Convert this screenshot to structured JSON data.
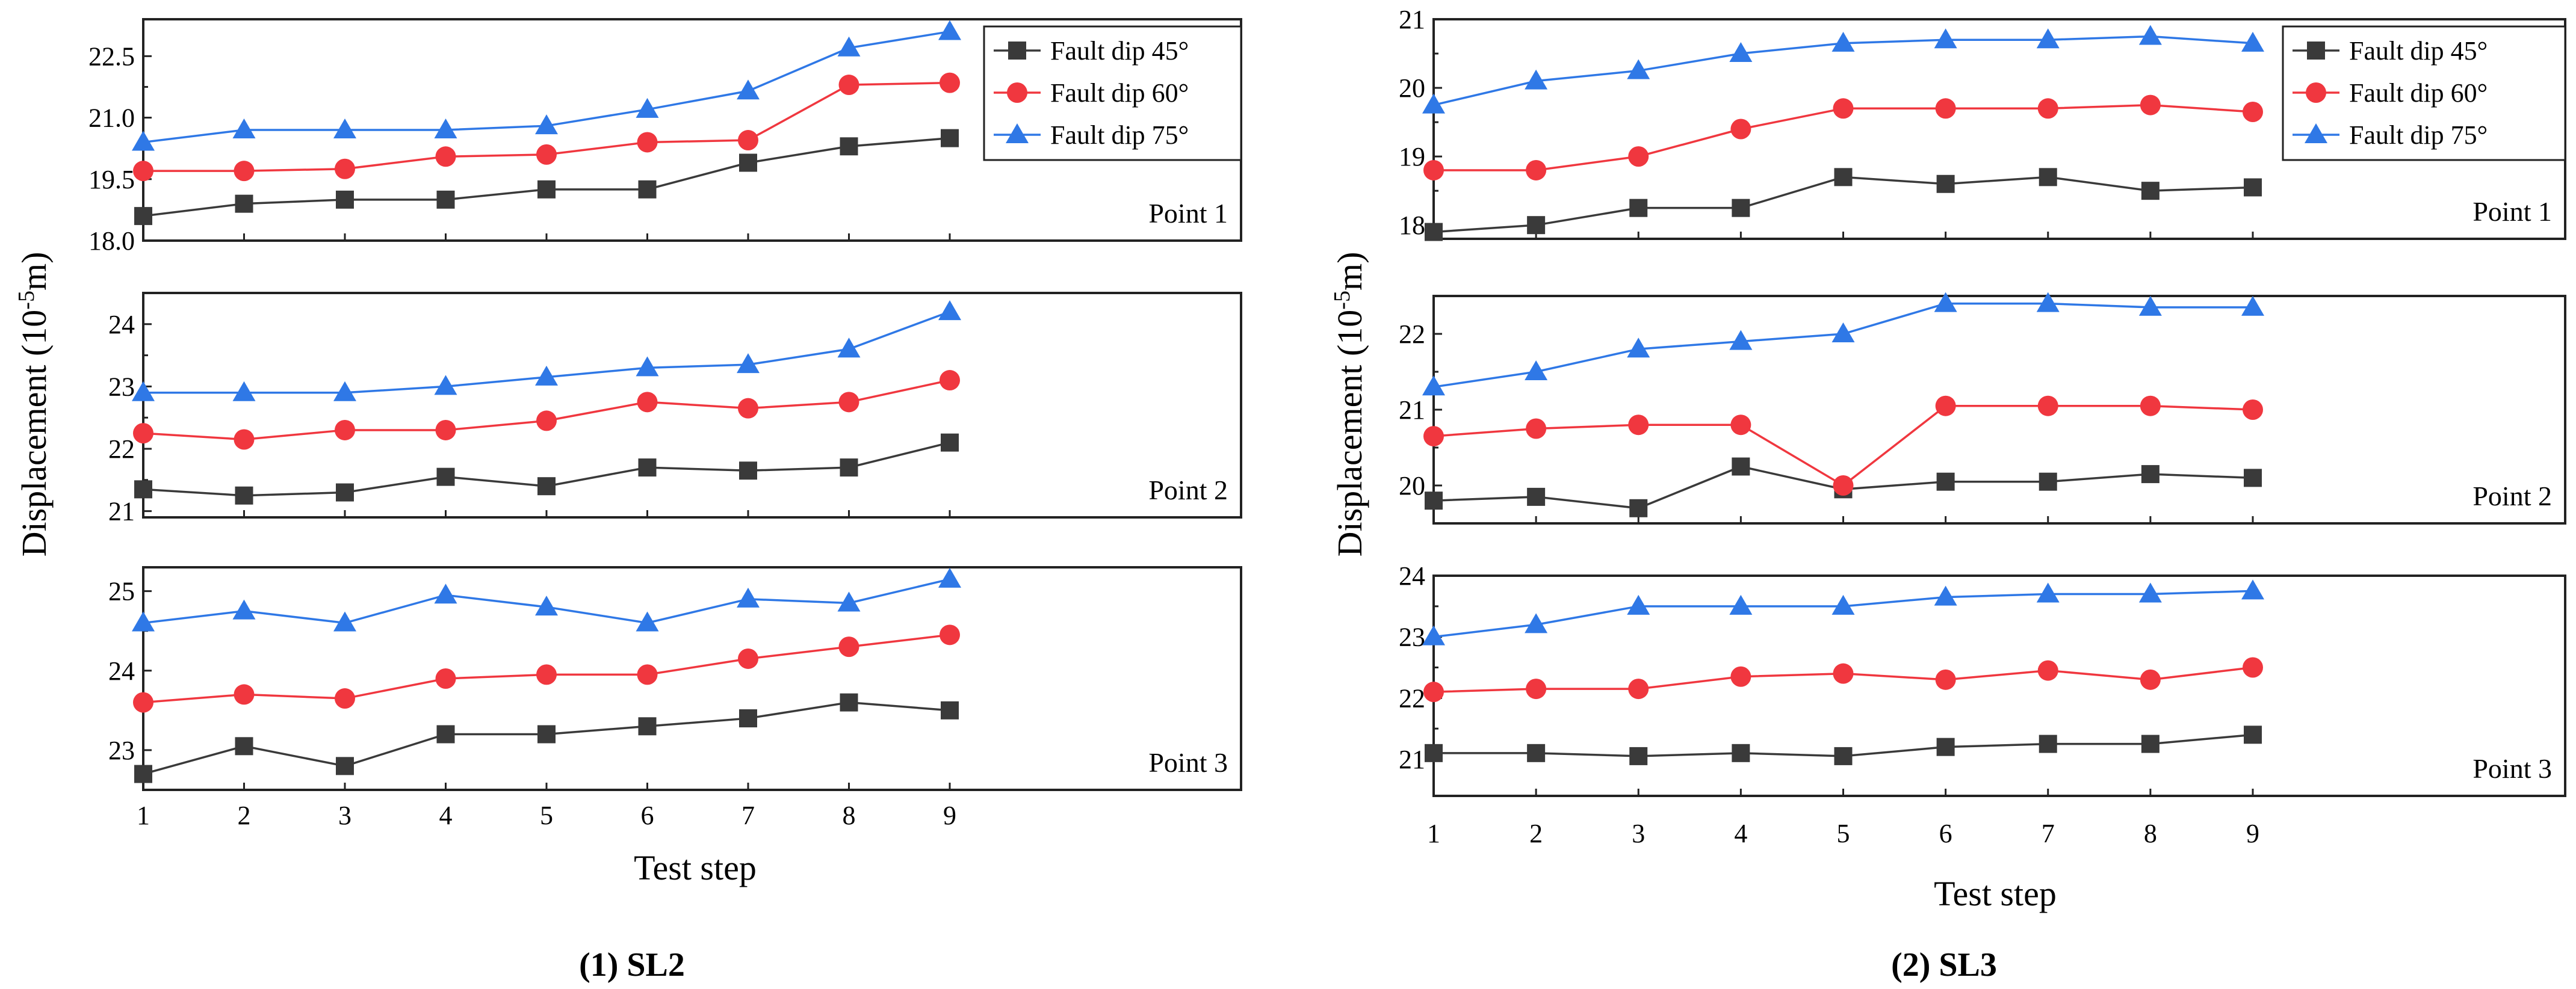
{
  "figure": {
    "left_caption": "(1) SL2",
    "right_caption": "(2) SL3"
  },
  "colors": {
    "Fault dip 45°": "#3a3a3a",
    "Fault dip 60°": "#f0373f",
    "Fault dip 75°": "#2f78e6"
  },
  "chart_data": [
    {
      "type": "line",
      "title": "(1) SL2",
      "xlabel": "Test step",
      "ylabel": "Displacement (10-5m)",
      "ylabel_parts": {
        "main": "Displacement (10",
        "sup": "-5",
        "unit": "m)"
      },
      "x": [
        1,
        2,
        3,
        4,
        5,
        6,
        7,
        8,
        9
      ],
      "xlim": [
        1,
        9
      ],
      "legend": [
        "Fault dip 45°",
        "Fault dip 60°",
        "Fault dip 75°"
      ],
      "legend_position": "top-right",
      "markers": {
        "Fault dip 45°": "square",
        "Fault dip 60°": "circle",
        "Fault dip 75°": "triangle"
      },
      "panels": [
        {
          "label": "Point 1",
          "ylim": [
            18.0,
            23.4
          ],
          "yticks": [
            18.0,
            19.5,
            21.0,
            22.5
          ],
          "ytick_labels": [
            "18.0",
            "19.5",
            "21.0",
            "22.5"
          ],
          "series": [
            {
              "name": "Fault dip 45°",
              "values": [
                18.6,
                18.9,
                19.0,
                19.0,
                19.25,
                19.25,
                19.9,
                20.3,
                20.5
              ]
            },
            {
              "name": "Fault dip 60°",
              "values": [
                19.7,
                19.7,
                19.75,
                20.05,
                20.1,
                20.4,
                20.45,
                21.8,
                21.85
              ]
            },
            {
              "name": "Fault dip 75°",
              "values": [
                20.4,
                20.7,
                20.7,
                20.7,
                20.8,
                21.2,
                21.65,
                22.7,
                23.1
              ]
            }
          ]
        },
        {
          "label": "Point 2",
          "ylim": [
            20.9,
            24.5
          ],
          "yticks": [
            21,
            22,
            23,
            24
          ],
          "ytick_labels": [
            "21",
            "22",
            "23",
            "24"
          ],
          "series": [
            {
              "name": "Fault dip 45°",
              "values": [
                21.35,
                21.25,
                21.3,
                21.55,
                21.4,
                21.7,
                21.65,
                21.7,
                22.1
              ]
            },
            {
              "name": "Fault dip 60°",
              "values": [
                22.25,
                22.15,
                22.3,
                22.3,
                22.45,
                22.75,
                22.65,
                22.75,
                23.1
              ]
            },
            {
              "name": "Fault dip 75°",
              "values": [
                22.9,
                22.9,
                22.9,
                23.0,
                23.15,
                23.3,
                23.35,
                23.6,
                24.2
              ]
            }
          ]
        },
        {
          "label": "Point 3",
          "ylim": [
            22.5,
            25.3
          ],
          "yticks": [
            23,
            24,
            25
          ],
          "ytick_labels": [
            "23",
            "24",
            "25"
          ],
          "series": [
            {
              "name": "Fault dip 45°",
              "values": [
                22.7,
                23.05,
                22.8,
                23.2,
                23.2,
                23.3,
                23.4,
                23.6,
                23.5
              ]
            },
            {
              "name": "Fault dip 60°",
              "values": [
                23.6,
                23.7,
                23.65,
                23.9,
                23.95,
                23.95,
                24.15,
                24.3,
                24.45
              ]
            },
            {
              "name": "Fault dip 75°",
              "values": [
                24.6,
                24.75,
                24.6,
                24.95,
                24.8,
                24.6,
                24.9,
                24.85,
                25.15
              ]
            }
          ]
        }
      ]
    },
    {
      "type": "line",
      "title": "(2) SL3",
      "xlabel": "Test step",
      "ylabel": "Displacement (10-5m)",
      "ylabel_parts": {
        "main": "Displacement (10",
        "sup": "-5",
        "unit": "m)"
      },
      "x": [
        1,
        2,
        3,
        4,
        5,
        6,
        7,
        8,
        9
      ],
      "xlim": [
        1,
        9
      ],
      "legend": [
        "Fault dip 45°",
        "Fault dip 60°",
        "Fault dip 75°"
      ],
      "legend_position": "top-right",
      "markers": {
        "Fault dip 45°": "square",
        "Fault dip 60°": "circle",
        "Fault dip 75°": "triangle"
      },
      "panels": [
        {
          "label": "Point 1",
          "ylim": [
            17.8,
            21.0
          ],
          "yticks": [
            18,
            19,
            20,
            21
          ],
          "ytick_labels": [
            "18",
            "19",
            "20",
            "21"
          ],
          "series": [
            {
              "name": "Fault dip 45°",
              "values": [
                17.9,
                18.0,
                18.25,
                18.25,
                18.7,
                18.6,
                18.7,
                18.5,
                18.55
              ]
            },
            {
              "name": "Fault dip 60°",
              "values": [
                18.8,
                18.8,
                19.0,
                19.4,
                19.7,
                19.7,
                19.7,
                19.75,
                19.65
              ]
            },
            {
              "name": "Fault dip 75°",
              "values": [
                19.75,
                20.1,
                20.25,
                20.5,
                20.65,
                20.7,
                20.7,
                20.75,
                20.65
              ]
            }
          ]
        },
        {
          "label": "Point 2",
          "ylim": [
            19.5,
            22.5
          ],
          "yticks": [
            20,
            21,
            22
          ],
          "ytick_labels": [
            "20",
            "21",
            "22"
          ],
          "series": [
            {
              "name": "Fault dip 45°",
              "values": [
                19.8,
                19.85,
                19.7,
                20.25,
                19.95,
                20.05,
                20.05,
                20.15,
                20.1
              ]
            },
            {
              "name": "Fault dip 60°",
              "values": [
                20.65,
                20.75,
                20.8,
                20.8,
                20.0,
                21.05,
                21.05,
                21.05,
                21.0
              ]
            },
            {
              "name": "Fault dip 75°",
              "values": [
                21.3,
                21.5,
                21.8,
                21.9,
                22.0,
                22.4,
                22.4,
                22.35,
                22.35
              ]
            }
          ]
        },
        {
          "label": "Point 3",
          "ylim": [
            20.4,
            24.0
          ],
          "yticks": [
            21,
            22,
            23,
            24
          ],
          "ytick_labels": [
            "21",
            "22",
            "23",
            "24"
          ],
          "series": [
            {
              "name": "Fault dip 45°",
              "values": [
                21.1,
                21.1,
                21.05,
                21.1,
                21.05,
                21.2,
                21.25,
                21.25,
                21.4
              ]
            },
            {
              "name": "Fault dip 60°",
              "values": [
                22.1,
                22.15,
                22.15,
                22.35,
                22.4,
                22.3,
                22.45,
                22.3,
                22.5
              ]
            },
            {
              "name": "Fault dip 75°",
              "values": [
                23.0,
                23.2,
                23.5,
                23.5,
                23.5,
                23.65,
                23.7,
                23.7,
                23.75
              ]
            }
          ]
        }
      ]
    }
  ]
}
